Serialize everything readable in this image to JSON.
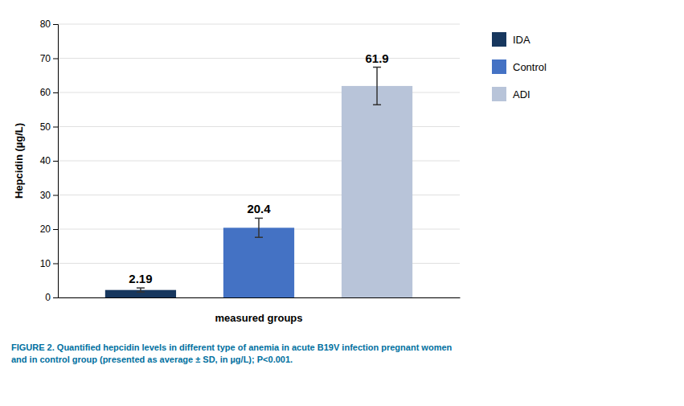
{
  "chart_data": {
    "type": "bar",
    "categories": [
      "IDA",
      "Control",
      "ADI"
    ],
    "values": [
      2.19,
      20.4,
      61.9
    ],
    "errors": [
      0.6,
      2.8,
      5.5
    ],
    "colors": [
      "#17375E",
      "#4472C4",
      "#B8C4D9"
    ],
    "xlabel": "measured groups",
    "ylabel": "Hepcidin (µg/L)",
    "caption": "FIGURE 2. Quantified hepcidin levels in different type of anemia in acute B19V infection pregnant women\nand in control group (presented as average ± SD, in µg/L); P<0.001.",
    "ylim": [
      0,
      80
    ],
    "yticks": [
      0,
      10,
      20,
      30,
      40,
      50,
      60,
      70,
      80
    ],
    "grid": true,
    "data_labels": true,
    "tick_labels": "y",
    "legend": "right"
  }
}
